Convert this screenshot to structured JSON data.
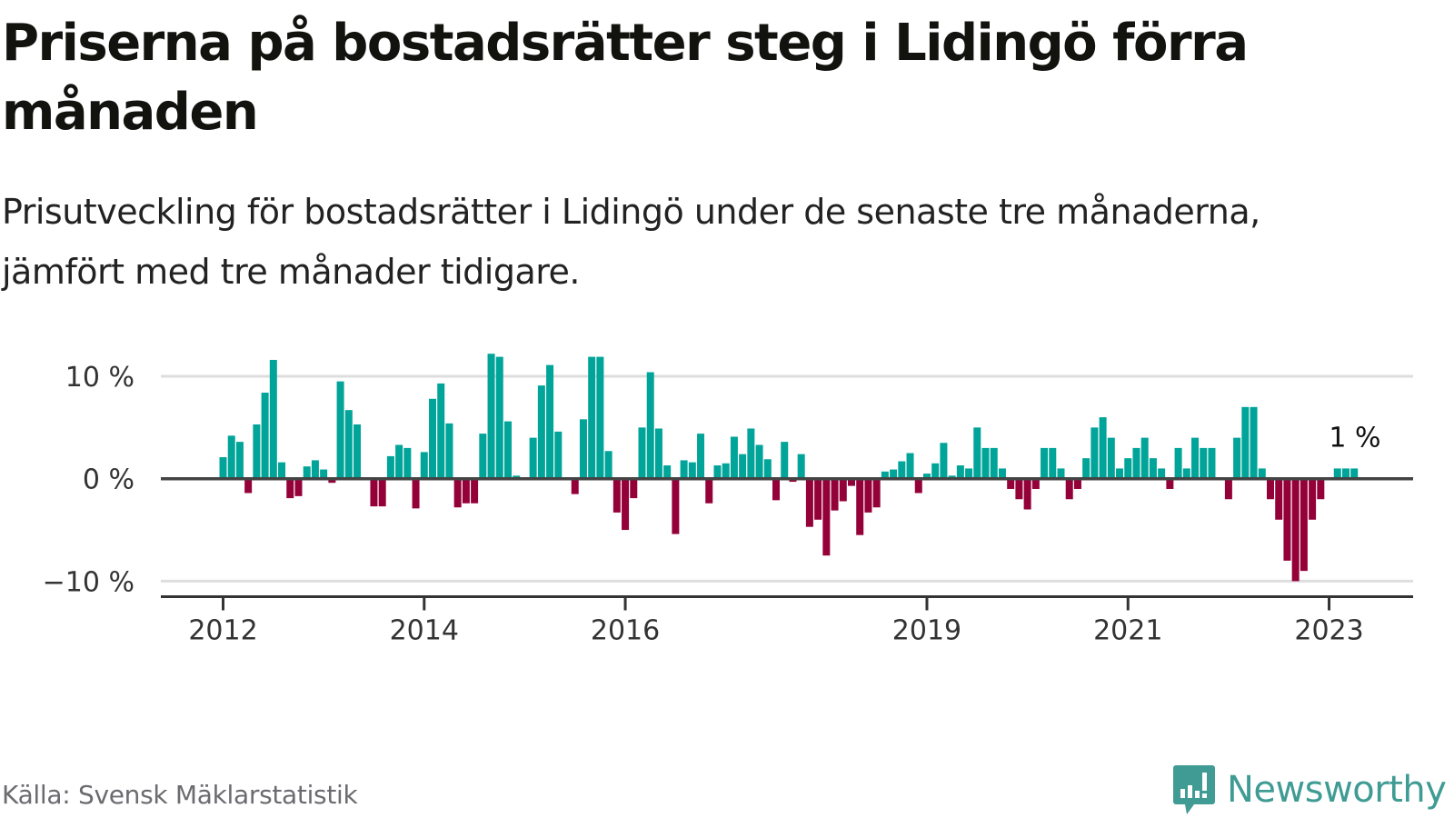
{
  "header": {
    "title": "Priserna på bostadsrätter steg i Lidingö förra månaden",
    "subtitle": "Prisutveckling för bostadsrätter i Lidingö under de senaste tre månaderna, jämfört med tre månader tidigare."
  },
  "footer": {
    "source": "Källa: Svensk Mäklarstatistik",
    "brand": "Newsworthy"
  },
  "colors": {
    "positive": "#00a499",
    "negative": "#940038",
    "brand": "#3f9b93"
  },
  "chart_data": {
    "type": "bar",
    "title": "Priserna på bostadsrätter steg i Lidingö förra månaden",
    "subtitle": "Prisutveckling för bostadsrätter i Lidingö under de senaste tre månaderna, jämfört med tre månader tidigare.",
    "xlabel": "",
    "ylabel": "",
    "unit": "%",
    "start": "2012-01",
    "frequency": "monthly",
    "ylim": [
      -11.5,
      13
    ],
    "yticks": [
      {
        "value": 10,
        "label": "10 %"
      },
      {
        "value": 0,
        "label": "0 %"
      },
      {
        "value": -10,
        "label": "−10 %"
      }
    ],
    "xticks": [
      {
        "index": 0,
        "label": "2012"
      },
      {
        "index": 24,
        "label": "2014"
      },
      {
        "index": 48,
        "label": "2016"
      },
      {
        "index": 84,
        "label": "2019"
      },
      {
        "index": 108,
        "label": "2021"
      },
      {
        "index": 132,
        "label": "2023"
      }
    ],
    "grid": true,
    "annotation": {
      "label": "1 %",
      "index": 134
    },
    "values": [
      2.1,
      4.2,
      3.6,
      -1.4,
      5.3,
      8.4,
      11.6,
      1.6,
      -1.9,
      -1.7,
      1.2,
      1.8,
      0.9,
      -0.4,
      9.5,
      6.7,
      5.3,
      0,
      -2.7,
      -2.7,
      2.2,
      3.3,
      3.0,
      -2.9,
      2.6,
      7.8,
      9.3,
      5.4,
      -2.8,
      -2.4,
      -2.4,
      4.4,
      12.2,
      11.9,
      5.6,
      0.3,
      0,
      4.0,
      9.1,
      11.1,
      4.6,
      0,
      -1.5,
      5.8,
      11.9,
      11.9,
      2.7,
      -3.3,
      -5.0,
      -1.9,
      5.0,
      10.4,
      4.9,
      1.3,
      -5.4,
      1.8,
      1.6,
      4.4,
      -2.4,
      1.3,
      1.5,
      4.1,
      2.4,
      4.9,
      3.3,
      1.9,
      -2.1,
      3.6,
      -0.3,
      2.4,
      -4.7,
      -4.0,
      -7.5,
      -3.1,
      -2.2,
      -0.7,
      -5.5,
      -3.3,
      -2.8,
      0.7,
      0.9,
      1.7,
      2.5,
      -1.4,
      0.5,
      1.5,
      3.5,
      0.3,
      1.3,
      1.0,
      5.0,
      3.0,
      3.0,
      1.0,
      -1.0,
      -2.0,
      -3.0,
      -1.0,
      3.0,
      3.0,
      1.0,
      -2.0,
      -1.0,
      2.0,
      5.0,
      6.0,
      4.0,
      1.0,
      2.0,
      3.0,
      4.0,
      2.0,
      1.0,
      -1.0,
      3.0,
      1.0,
      4.0,
      3.0,
      3.0,
      0,
      -2.0,
      4.0,
      7.0,
      7.0,
      1.0,
      -2.0,
      -4.0,
      -8.0,
      -10.0,
      -9.0,
      -4.0,
      -2.0,
      0,
      1.0,
      1.0,
      1.0
    ]
  }
}
